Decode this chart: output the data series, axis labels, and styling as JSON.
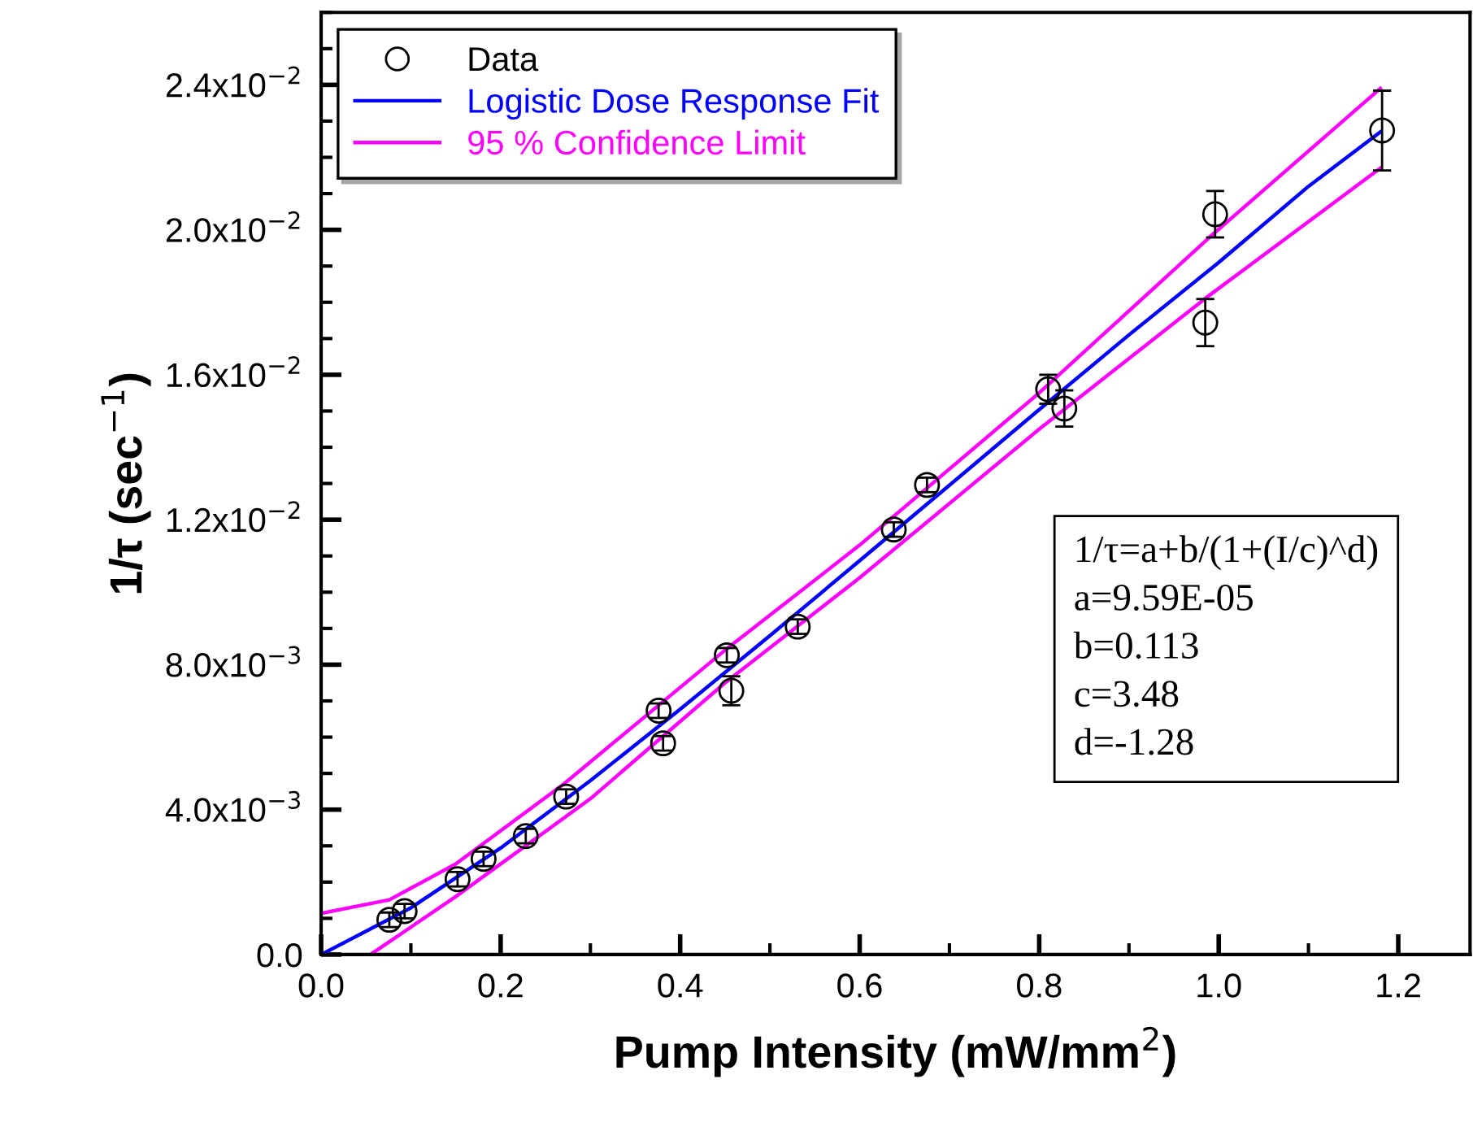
{
  "chart_data": {
    "type": "scatter",
    "xlabel": "Pump Intensity (mW/mm$^{2}$)",
    "ylabel": "1/τ (sec$^{−1}$)",
    "xlim": [
      0,
      1.28
    ],
    "xticks": [
      {
        "value": 0,
        "label": "0.0"
      },
      0.2,
      0.4,
      0.6,
      0.8,
      {
        "value": 1,
        "label": "1.0"
      },
      1.2
    ],
    "ylim": [
      0,
      0.026
    ],
    "yticks": [
      {
        "value": 0,
        "label": "0.0"
      },
      {
        "value": 0.004,
        "label": "4.0x10$^{−3}$"
      },
      {
        "value": 0.008,
        "label": "8.0x10$^{−3}$"
      },
      {
        "value": 0.012,
        "label": "1.2x10$^{−2}$"
      },
      {
        "value": 0.016,
        "label": "1.6x10$^{−2}$"
      },
      {
        "value": 0.02,
        "label": "2.0x10$^{−2}$"
      },
      {
        "value": 0.024,
        "label": "2.4x10$^{−2}$"
      }
    ],
    "grid": false,
    "legend": "top left",
    "series": [
      {
        "name": "Data",
        "marker": "circle",
        "color": "#000000",
        "x": [
          0.076,
          0.093,
          0.152,
          0.181,
          0.228,
          0.273,
          0.376,
          0.381,
          0.452,
          0.457,
          0.531,
          0.638,
          0.675,
          0.81,
          0.828,
          0.996,
          0.985,
          1.182
        ],
        "values": [
          0.00096,
          0.0012,
          0.00208,
          0.00264,
          0.00327,
          0.00436,
          0.00673,
          0.00583,
          0.00826,
          0.00728,
          0.00905,
          0.01173,
          0.01296,
          0.0156,
          0.01507,
          0.02043,
          0.01744,
          0.02274
        ],
        "errors": [
          0.0002,
          0.0002,
          0.0002,
          0.0002,
          0.0002,
          0.0002,
          0.0002,
          0.0002,
          0.0002,
          0.0004,
          0.0002,
          0.0002,
          0.0002,
          0.0004,
          0.0005,
          0.00064,
          0.00065,
          0.0011
        ]
      },
      {
        "name": "Logistic Dose Response Fit",
        "type": "line",
        "marker": "none",
        "line_style": "solid",
        "color": "#0000ff",
        "x": [
          0,
          0.1,
          0.2,
          0.3,
          0.4,
          0.5,
          0.6,
          0.7,
          0.8,
          0.9,
          1.0,
          1.1,
          1.18
        ],
        "values": [
          0,
          0.00129,
          0.00294,
          0.0048,
          0.00677,
          0.0088,
          0.01087,
          0.01295,
          0.01504,
          0.0171,
          0.0191,
          0.0212,
          0.0227
        ]
      },
      {
        "name": "95 % Confidence Limit",
        "type": "line",
        "marker": "none",
        "line_style": "solid",
        "color": "#ff00ff",
        "x": [
          0,
          0.076,
          0.15,
          0.27,
          0.45,
          0.6,
          0.8,
          0.99,
          1.18
        ],
        "values": [
          0.00114,
          0.00151,
          0.0025,
          0.0047,
          0.0084,
          0.0113,
          0.0155,
          0.0198,
          0.0239
        ]
      },
      {
        "type": "line",
        "marker": "none",
        "line_style": "solid",
        "color": "#ff00ff",
        "x": [
          0.055,
          0.15,
          0.3,
          0.45,
          0.6,
          0.8,
          0.99,
          1.18
        ],
        "values": [
          0,
          0.0016,
          0.0043,
          0.0075,
          0.0104,
          0.0145,
          0.0182,
          0.0217
        ]
      }
    ],
    "annotations": [
      "1/τ=a+b/(1+(I/c)^d)\na=9.59E-05\nb=0.113\nc=3.48\nd=-1.28"
    ]
  }
}
